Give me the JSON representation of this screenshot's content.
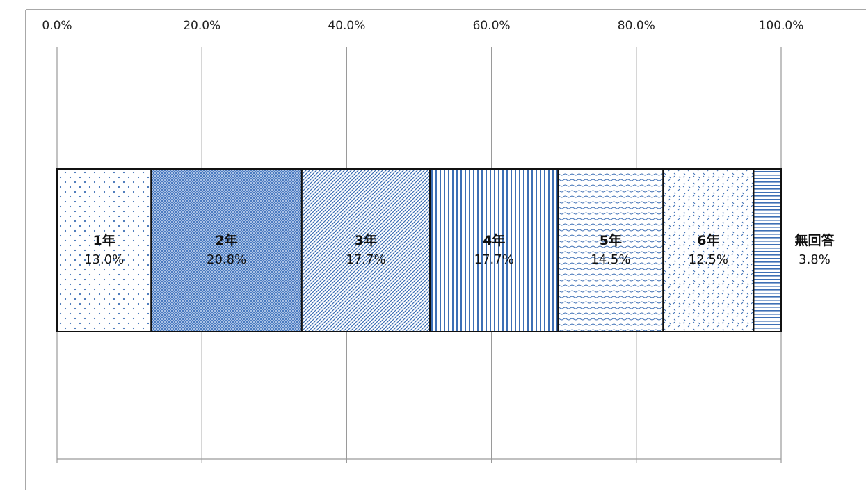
{
  "chart_data": {
    "type": "bar",
    "orientation": "horizontal",
    "stacked": "100%",
    "title": "",
    "xlabel": "",
    "ylabel": "",
    "xlim": [
      0,
      100
    ],
    "axis_position": "top",
    "grid": "vertical",
    "legend": "none",
    "ticks": [
      "0.0%",
      "20.0%",
      "40.0%",
      "60.0%",
      "80.0%",
      "100.0%"
    ],
    "series": [
      {
        "label": "1年",
        "value": 13.0,
        "value_label": "13.0%",
        "pattern": "sparse-dots",
        "color": "#3d6fb5"
      },
      {
        "label": "2年",
        "value": 20.8,
        "value_label": "20.8%",
        "pattern": "dense-checker",
        "color": "#3d6fb5"
      },
      {
        "label": "3年",
        "value": 17.7,
        "value_label": "17.7%",
        "pattern": "diagonal-lines",
        "color": "#3d6fb5"
      },
      {
        "label": "4年",
        "value": 17.7,
        "value_label": "17.7%",
        "pattern": "vertical-lines",
        "color": "#3d6fb5"
      },
      {
        "label": "5年",
        "value": 14.5,
        "value_label": "14.5%",
        "pattern": "horizontal-waves",
        "color": "#3d6fb5"
      },
      {
        "label": "6年",
        "value": 12.5,
        "value_label": "12.5%",
        "pattern": "scattered-marks",
        "color": "#3d6fb5"
      },
      {
        "label": "無回答",
        "value": 3.8,
        "value_label": "3.8%",
        "pattern": "horizontal-lines",
        "color": "#3d6fb5"
      }
    ]
  }
}
